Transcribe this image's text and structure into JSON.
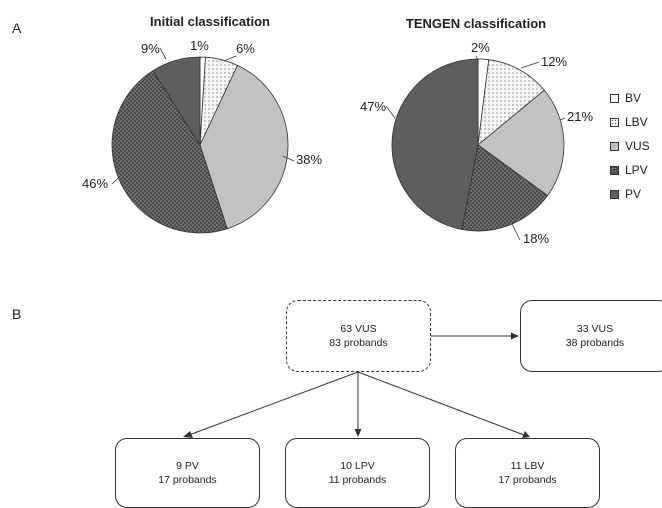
{
  "panel_a_label": "A",
  "panel_b_label": "B",
  "legend": [
    {
      "label": "BV",
      "pattern": "white"
    },
    {
      "label": "LBV",
      "pattern": "dots"
    },
    {
      "label": "VUS",
      "pattern": "light-gray"
    },
    {
      "label": "LPV",
      "pattern": "dark-dots"
    },
    {
      "label": "PV",
      "pattern": "dark-gray"
    }
  ],
  "colors": {
    "BV": "#ffffff",
    "LBV": "#f4f4f4",
    "VUS": "#c2c2c2",
    "LPV": "#5a5a5a",
    "PV": "#5e5e5e"
  },
  "chart_data": [
    {
      "type": "pie",
      "title": "Initial classification",
      "categories": [
        "BV",
        "LBV",
        "VUS",
        "LPV",
        "PV"
      ],
      "values": [
        1,
        6,
        38,
        46,
        9
      ],
      "labels": [
        "1%",
        "6%",
        "38%",
        "46%",
        "9%"
      ]
    },
    {
      "type": "pie",
      "title": "TENGEN classification",
      "categories": [
        "BV",
        "LBV",
        "VUS",
        "LPV",
        "PV"
      ],
      "values": [
        2,
        12,
        21,
        18,
        47
      ],
      "labels": [
        "2%",
        "12%",
        "21%",
        "18%",
        "47%"
      ]
    }
  ],
  "flow": {
    "source": {
      "line1": "63 VUS",
      "line2": "83 probands"
    },
    "remain": {
      "line1": "33 VUS",
      "line2": "38 probands"
    },
    "to_pv": {
      "line1": "9 PV",
      "line2": "17 probands"
    },
    "to_lpv": {
      "line1": "10 LPV",
      "line2": "11 probands"
    },
    "to_lbv": {
      "line1": "11 LBV",
      "line2": "17 probands"
    }
  }
}
